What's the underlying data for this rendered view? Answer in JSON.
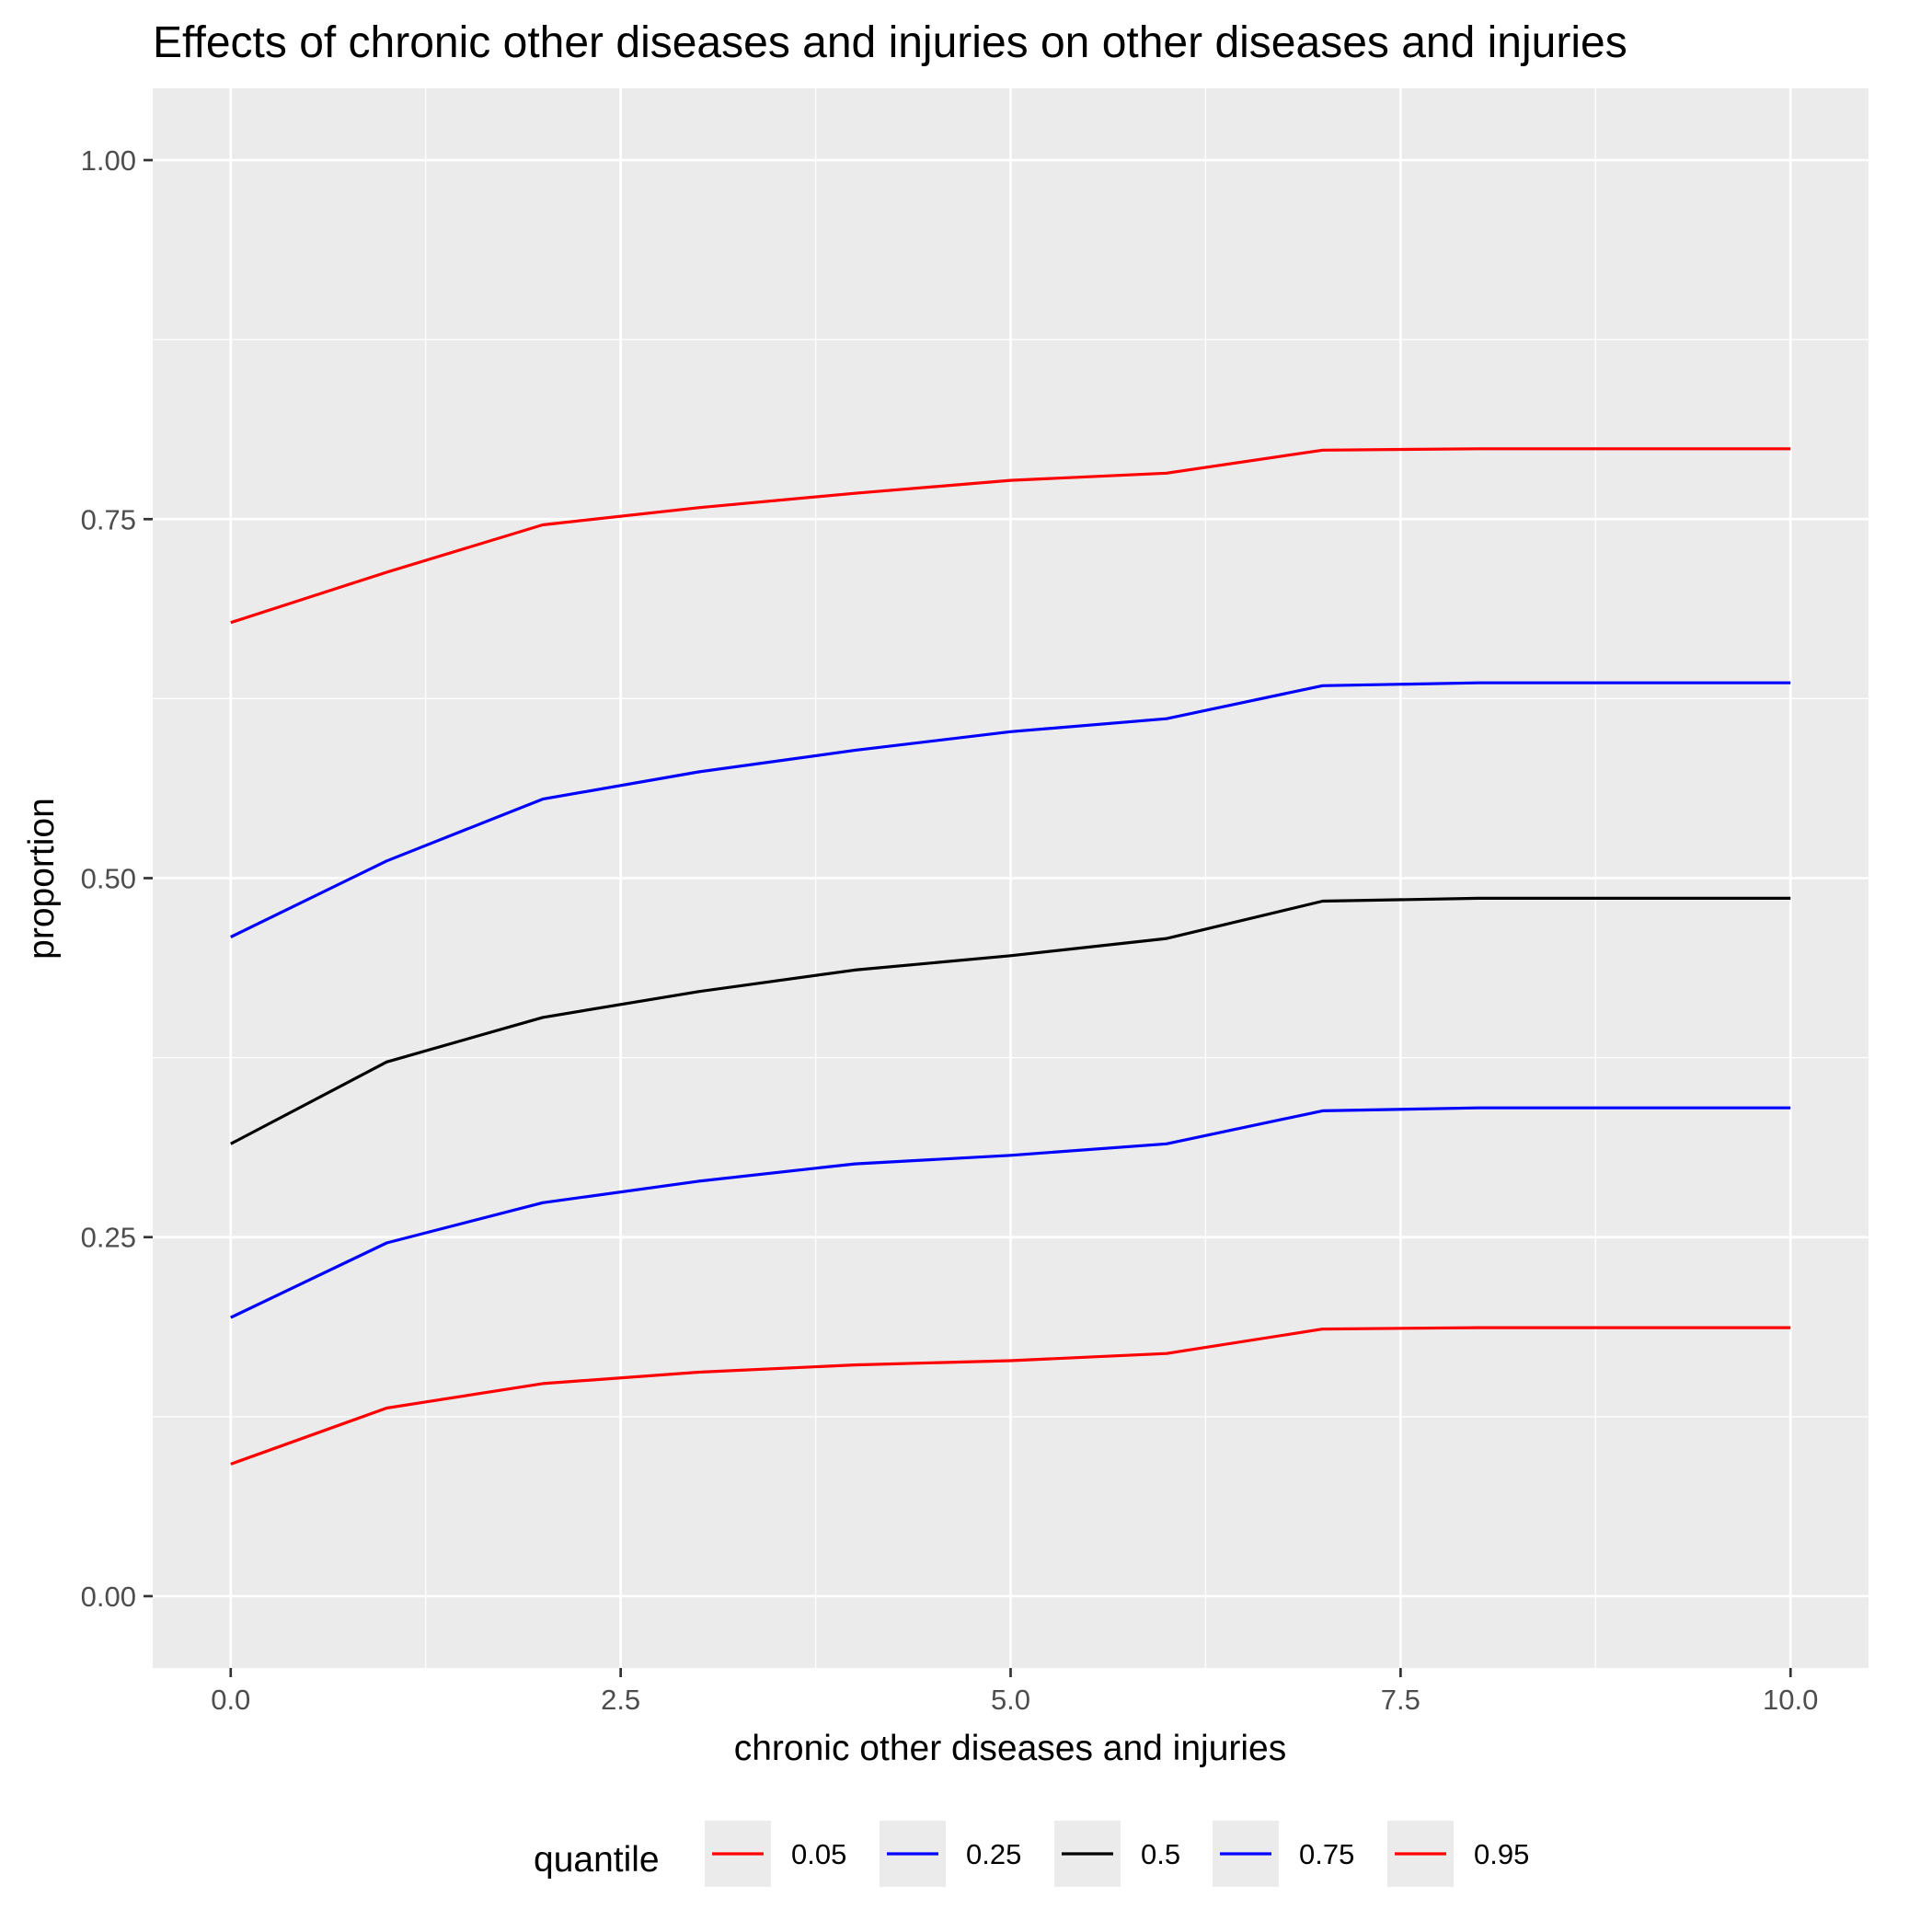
{
  "chart_data": {
    "type": "line",
    "title": "Effects of chronic other diseases and injuries on other diseases and injuries",
    "xlabel": "chronic other diseases and injuries",
    "ylabel": "proportion",
    "xlim": [
      -0.5,
      10.5
    ],
    "ylim": [
      -0.05,
      1.05
    ],
    "x_ticks": [
      0,
      2.5,
      5,
      7.5,
      10
    ],
    "x_tick_labels": [
      "0.0",
      "2.5",
      "5.0",
      "7.5",
      "10.0"
    ],
    "y_ticks": [
      0,
      0.25,
      0.5,
      0.75,
      1
    ],
    "y_tick_labels": [
      "0.00",
      "0.25",
      "0.50",
      "0.75",
      "1.00"
    ],
    "grid": true,
    "legend_position": "bottom",
    "legend_title": "quantile",
    "x": [
      0,
      1,
      2,
      3,
      4,
      5,
      6,
      7,
      8,
      9,
      10
    ],
    "series": [
      {
        "name": "0.05",
        "color": "#ff0000",
        "values": [
          0.092,
          0.131,
          0.148,
          0.156,
          0.161,
          0.164,
          0.169,
          0.186,
          0.187,
          0.187,
          0.187
        ]
      },
      {
        "name": "0.25",
        "color": "#0000ff",
        "values": [
          0.194,
          0.246,
          0.274,
          0.289,
          0.301,
          0.307,
          0.315,
          0.338,
          0.34,
          0.34,
          0.34
        ]
      },
      {
        "name": "0.5",
        "color": "#000000",
        "values": [
          0.315,
          0.372,
          0.403,
          0.421,
          0.436,
          0.446,
          0.458,
          0.484,
          0.486,
          0.486,
          0.486
        ]
      },
      {
        "name": "0.75",
        "color": "#0000ff",
        "values": [
          0.459,
          0.512,
          0.555,
          0.574,
          0.589,
          0.602,
          0.611,
          0.634,
          0.636,
          0.636,
          0.636
        ]
      },
      {
        "name": "0.95",
        "color": "#ff0000",
        "values": [
          0.678,
          0.713,
          0.746,
          0.758,
          0.768,
          0.777,
          0.782,
          0.798,
          0.799,
          0.799,
          0.799
        ]
      }
    ]
  }
}
